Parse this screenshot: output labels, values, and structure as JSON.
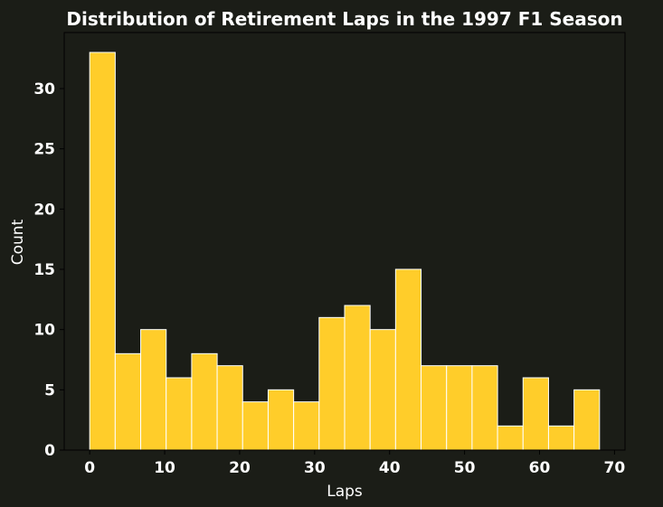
{
  "chart_data": {
    "type": "bar",
    "title": "Distribution of Retirement Laps in the 1997 F1 Season",
    "xlabel": "Laps",
    "ylabel": "Count",
    "bin_edges": [
      0,
      3.4,
      6.8,
      10.2,
      13.6,
      17,
      20.4,
      23.8,
      27.2,
      30.6,
      34,
      37.4,
      40.8,
      44.2,
      47.6,
      51,
      54.4,
      57.8,
      61.2,
      64.6,
      68
    ],
    "values": [
      33,
      8,
      10,
      6,
      8,
      7,
      4,
      5,
      4,
      11,
      12,
      10,
      15,
      7,
      7,
      7,
      2,
      6,
      2,
      5
    ],
    "xlim": [
      -3.4,
      71.4
    ],
    "ylim": [
      0,
      34.65
    ],
    "xticks": [
      0,
      10,
      20,
      30,
      40,
      50,
      60,
      70
    ],
    "yticks": [
      0,
      5,
      10,
      15,
      20,
      25,
      30
    ],
    "grid": false,
    "colors": {
      "background": "#1b1d17",
      "bar_fill": "#ffcd2a",
      "bar_edge": "#ffffff",
      "text": "#ffffff",
      "axes": "#000000"
    }
  }
}
